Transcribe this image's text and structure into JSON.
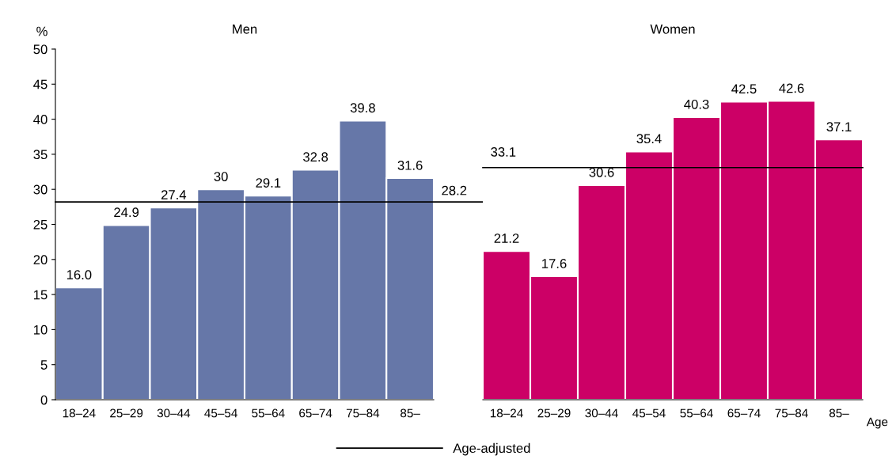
{
  "chart_data": [
    {
      "type": "bar",
      "title": "Men",
      "ylabel": "%",
      "categories": [
        "18–24",
        "25–29",
        "30–44",
        "45–54",
        "55–64",
        "65–74",
        "75–84",
        "85–"
      ],
      "values": [
        16.0,
        24.9,
        27.4,
        30,
        29.1,
        32.8,
        39.8,
        31.6
      ],
      "value_labels": [
        "16.0",
        "24.9",
        "27.4",
        "30",
        "29.1",
        "32.8",
        "39.8",
        "31.6"
      ],
      "color": "#6677a8",
      "ylim": [
        0,
        50
      ],
      "yticks": [
        0,
        5,
        10,
        15,
        20,
        25,
        30,
        35,
        40,
        45,
        50
      ],
      "grid": false,
      "ref_lines": [
        {
          "axis": "y",
          "value": 28.2,
          "label": "Age-adjusted",
          "color": "#000000"
        }
      ],
      "annotations": [
        {
          "text": "28.2",
          "y": 28.2
        }
      ]
    },
    {
      "type": "bar",
      "title": "Women",
      "xlabel": "Age",
      "categories": [
        "18–24",
        "25–29",
        "30–44",
        "45–54",
        "55–64",
        "65–74",
        "75–84",
        "85–"
      ],
      "values": [
        21.2,
        17.6,
        30.6,
        35.4,
        40.3,
        42.5,
        42.6,
        37.1
      ],
      "value_labels": [
        "21.2",
        "17.6",
        "30.6",
        "35.4",
        "40.3",
        "42.5",
        "42.6",
        "37.1"
      ],
      "color": "#cc0066",
      "ylim": [
        0,
        50
      ],
      "tick_labels": "x",
      "grid": false,
      "ref_lines": [
        {
          "axis": "y",
          "value": 33.1,
          "color": "#000000"
        }
      ],
      "annotations": [
        {
          "text": "33.1",
          "y": 33.1
        }
      ]
    }
  ]
}
